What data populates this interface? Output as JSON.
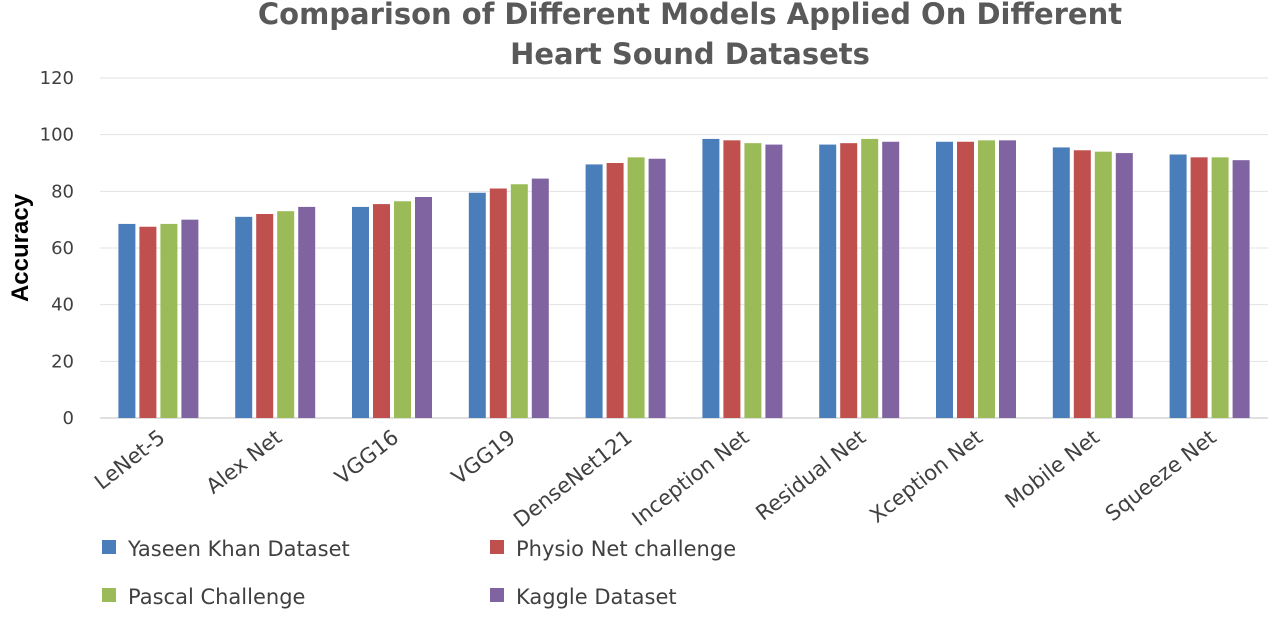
{
  "chart_data": {
    "type": "bar",
    "title_lines": [
      "Comparison of Different Models Applied On Different",
      "Heart Sound Datasets"
    ],
    "title": "Comparison of Different Models Applied On Different Heart Sound Datasets",
    "xlabel": "",
    "ylabel": "Accuracy",
    "ylim": [
      0,
      120
    ],
    "yticks": [
      0,
      20,
      40,
      60,
      80,
      100,
      120
    ],
    "grid": true,
    "legend_position": "bottom",
    "categories": [
      "LeNet-5",
      "Alex Net",
      "VGG16",
      "VGG19",
      "DenseNet121",
      "Inception Net",
      "Residual Net",
      "Xception Net",
      "Mobile Net",
      "Squeeze Net"
    ],
    "series": [
      {
        "name": "Yaseen Khan Dataset",
        "color": "#4a7ebb",
        "values": [
          68.5,
          71,
          74.5,
          79.5,
          89.5,
          98.5,
          96.5,
          97.5,
          95.5,
          93
        ]
      },
      {
        "name": "Physio Net challenge",
        "color": "#c0504d",
        "values": [
          67.5,
          72,
          75.5,
          81,
          90,
          98,
          97,
          97.5,
          94.5,
          92
        ]
      },
      {
        "name": "Pascal Challenge",
        "color": "#9bbb59",
        "values": [
          68.5,
          73,
          76.5,
          82.5,
          92,
          97,
          98.5,
          98,
          94,
          92
        ]
      },
      {
        "name": "Kaggle Dataset",
        "color": "#8064a2",
        "values": [
          70,
          74.5,
          78,
          84.5,
          91.5,
          96.5,
          97.5,
          98,
          93.5,
          91
        ]
      }
    ]
  }
}
